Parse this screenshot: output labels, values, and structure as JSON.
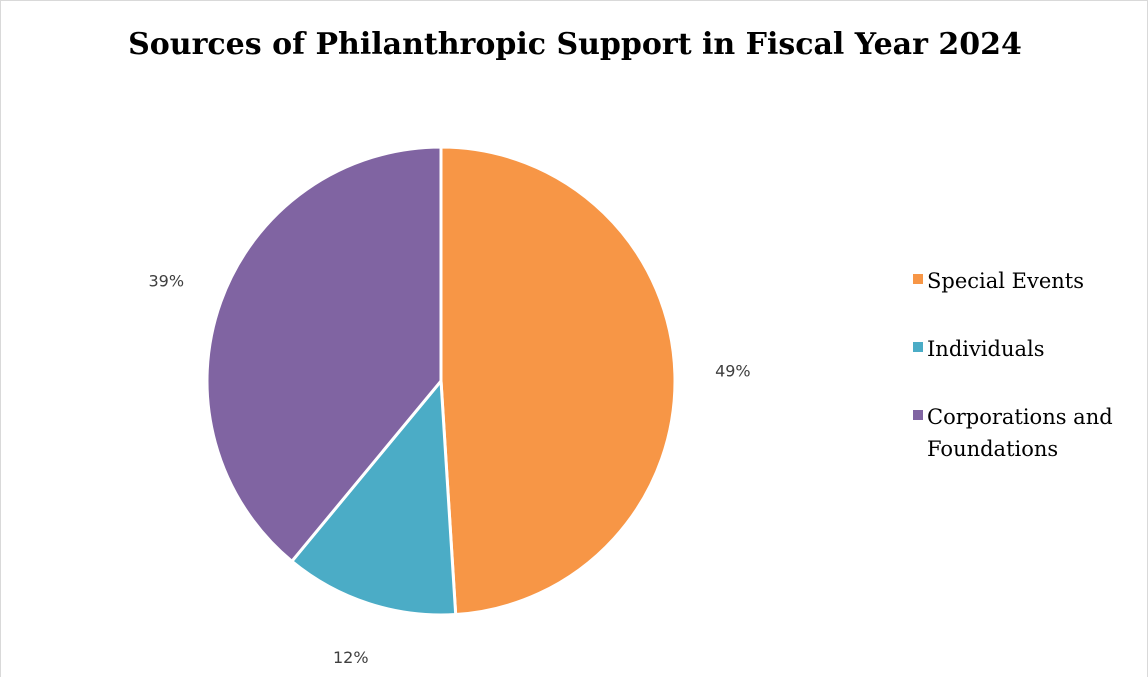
{
  "chart_data": {
    "type": "pie",
    "title": "Sources of Philanthropic Support in Fiscal Year 2024",
    "categories": [
      "Special Events",
      "Individuals",
      "Corporations and Foundations"
    ],
    "values": [
      49,
      12,
      39
    ],
    "data_labels": [
      "49%",
      "12%",
      "39%"
    ],
    "colors": [
      "#F79646",
      "#4BACC6",
      "#8064A2"
    ],
    "legend_placement": "right",
    "start_angle": "top, clockwise"
  }
}
